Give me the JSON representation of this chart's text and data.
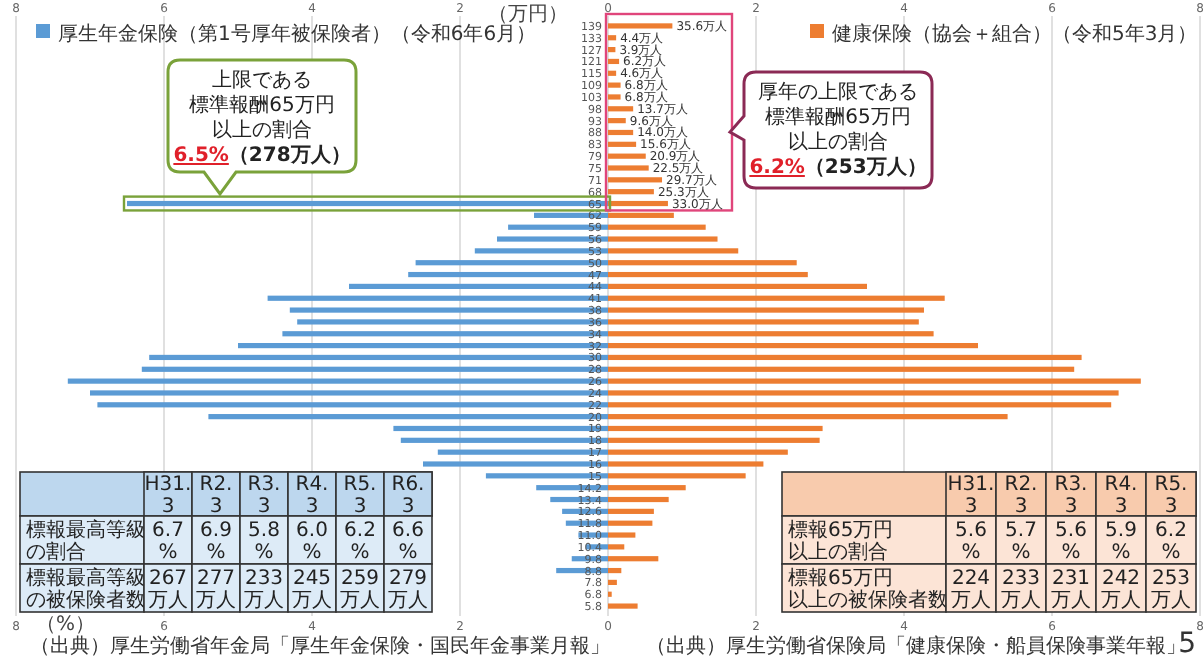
{
  "chart_data": [
    {
      "type": "bar",
      "orientation": "horizontal",
      "ylabel": "（万円）",
      "xlabel": "（%）",
      "categories": [
        "139",
        "133",
        "127",
        "121",
        "115",
        "109",
        "103",
        "98",
        "93",
        "88",
        "83",
        "79",
        "75",
        "71",
        "68",
        "65",
        "62",
        "59",
        "56",
        "53",
        "50",
        "47",
        "44",
        "41",
        "38",
        "36",
        "34",
        "32",
        "30",
        "28",
        "26",
        "24",
        "22",
        "20",
        "19",
        "18",
        "17",
        "16",
        "15",
        "14.2",
        "13.4",
        "12.6",
        "11.8",
        "11.0",
        "10.4",
        "9.8",
        "8.8",
        "7.8",
        "6.8",
        "5.8"
      ],
      "series": [
        {
          "name": "厚生年金保険（第1号厚年被保険者）（令和6年6月）",
          "color": "#5b9bd5",
          "values": [
            null,
            null,
            null,
            null,
            null,
            null,
            null,
            null,
            null,
            null,
            null,
            null,
            null,
            null,
            null,
            -6.5,
            -1.0,
            -1.35,
            -1.5,
            -1.8,
            -2.6,
            -2.7,
            -3.5,
            -4.6,
            -4.3,
            -4.2,
            -4.4,
            -5.0,
            -6.2,
            -6.3,
            -7.3,
            -7.0,
            -6.9,
            -5.4,
            -2.9,
            -2.8,
            -2.3,
            -2.5,
            -1.65,
            -0.97,
            -0.78,
            -0.62,
            -0.57,
            -0.4,
            -0.3,
            -0.49,
            -0.7,
            null,
            null,
            null
          ]
        },
        {
          "name": "健康保険（協会＋組合）（令和5年3月）",
          "color": "#ed7d31",
          "values": [
            0.87,
            0.11,
            0.1,
            0.15,
            0.11,
            0.17,
            0.17,
            0.34,
            0.24,
            0.34,
            0.38,
            0.51,
            0.55,
            0.73,
            0.62,
            0.81,
            0.89,
            1.32,
            1.48,
            1.76,
            2.55,
            2.7,
            3.5,
            4.55,
            4.27,
            4.2,
            4.4,
            5.0,
            6.4,
            6.3,
            7.2,
            6.9,
            6.8,
            5.4,
            2.9,
            2.86,
            2.43,
            2.1,
            1.86,
            1.05,
            0.82,
            0.62,
            0.6,
            0.37,
            0.22,
            0.68,
            0.18,
            0.12,
            0.05,
            0.4
          ]
        }
      ],
      "xlim": [
        -8,
        8
      ],
      "xticks": [
        {
          "value": -8,
          "label": "8"
        },
        {
          "value": -6,
          "label": "6"
        },
        {
          "value": -4,
          "label": "4"
        },
        {
          "value": -2,
          "label": "2"
        },
        0,
        2,
        4,
        6,
        8
      ],
      "x2lim": [
        -8,
        8
      ],
      "x2ticks": [
        {
          "value": -8,
          "label": "8"
        },
        {
          "value": -6,
          "label": "6"
        },
        {
          "value": -4,
          "label": "4"
        },
        {
          "value": -2,
          "label": "2"
        },
        0,
        2,
        4,
        6,
        8
      ],
      "grid": "x",
      "legend": "top",
      "stacked": true,
      "annotations": [
        "上限である",
        "標準報酬65万円",
        "以上の割合",
        "6.5%（278万人）",
        "厚年の上限である",
        "標準報酬65万円",
        "以上の割合",
        "6.2%（253万人）",
        "（出典）厚生労働省年金局「厚生年金保険・国民年金事業月報」",
        "（出典）厚生労働省保険局「健康保険・船員保険事業年報」",
        "5",
        {
          "text": "35.6万人",
          "x": 0.87,
          "y": "139"
        },
        {
          "text": "4.4万人",
          "x": 0.11,
          "y": "133"
        },
        {
          "text": "3.9万人",
          "x": 0.1,
          "y": "127"
        },
        {
          "text": "6.2万人",
          "x": 0.15,
          "y": "121"
        },
        {
          "text": "4.6万人",
          "x": 0.11,
          "y": "115"
        },
        {
          "text": "6.8万人",
          "x": 0.17,
          "y": "109"
        },
        {
          "text": "6.8万人",
          "x": 0.17,
          "y": "103"
        },
        {
          "text": "13.7万人",
          "x": 0.34,
          "y": "98"
        },
        {
          "text": "9.6万人",
          "x": 0.24,
          "y": "93"
        },
        {
          "text": "14.0万人",
          "x": 0.34,
          "y": "88"
        },
        {
          "text": "15.6万人",
          "x": 0.38,
          "y": "83"
        },
        {
          "text": "20.9万人",
          "x": 0.51,
          "y": "79"
        },
        {
          "text": "22.5万人",
          "x": 0.55,
          "y": "75"
        },
        {
          "text": "29.7万人",
          "x": 0.73,
          "y": "71"
        },
        {
          "text": "25.3万人",
          "x": 0.62,
          "y": "68"
        },
        {
          "text": "33.0万人",
          "x": 0.81,
          "y": "65"
        }
      ]
    },
    {
      "type": "other",
      "categories": [
        "H31.3",
        "R2.3",
        "R3.3",
        "R4.3",
        "R5.3",
        "R6.3"
      ],
      "y_categories": [
        "標報最高等級の割合",
        "標報最高等級の被保険者数"
      ],
      "cell_labels": [
        [
          "6.7%",
          "6.9%",
          "5.8%",
          "6.0%",
          "6.2%",
          "6.6%"
        ],
        [
          "267万人",
          "277万人",
          "233万人",
          "245万人",
          "259万人",
          "279万人"
        ]
      ]
    },
    {
      "type": "other",
      "categories": [
        "H31.3",
        "R2.3",
        "R3.3",
        "R4.3",
        "R5.3"
      ],
      "y_categories": [
        "標報65万円以上の割合",
        "標報65万円以上の被保険者数"
      ],
      "cell_labels": [
        [
          "5.6%",
          "5.7%",
          "5.6%",
          "5.9%",
          "6.2%"
        ],
        [
          "224万人",
          "233万人",
          "231万人",
          "242万人",
          "253万人"
        ]
      ]
    }
  ]
}
